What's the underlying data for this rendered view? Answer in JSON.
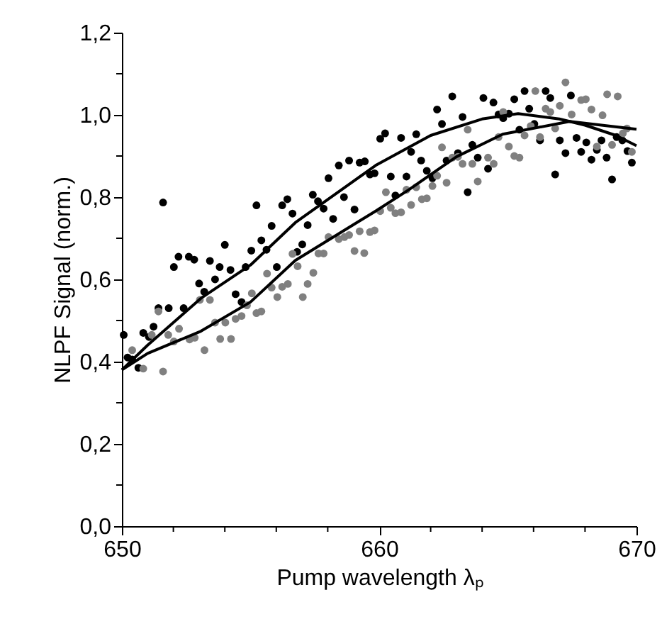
{
  "chart_data": {
    "type": "scatter",
    "xlabel": "Pump wavelength λₚ",
    "ylabel": "NLPF Signal (norm.)",
    "xlim": [
      650,
      670
    ],
    "ylim": [
      0,
      1.2
    ],
    "xticks": [
      650,
      {
        "value": 652,
        "label": null
      },
      {
        "value": 654,
        "label": null
      },
      {
        "value": 656,
        "label": null
      },
      {
        "value": 658,
        "label": null
      },
      660,
      {
        "value": 662,
        "label": null
      },
      {
        "value": 664,
        "label": null
      },
      {
        "value": 666,
        "label": null
      },
      {
        "value": 668,
        "label": null
      },
      670
    ],
    "yticks": [
      {
        "value": 0,
        "label": "0,0"
      },
      {
        "value": 0.1,
        "label": null
      },
      {
        "value": 0.2,
        "label": "0,2"
      },
      {
        "value": 0.3,
        "label": null
      },
      {
        "value": 0.4,
        "label": "0,4"
      },
      {
        "value": 0.5,
        "label": null
      },
      {
        "value": 0.6,
        "label": "0,6"
      },
      {
        "value": 0.7,
        "label": null
      },
      {
        "value": 0.8,
        "label": "0,8"
      },
      {
        "value": 0.9,
        "label": null
      },
      {
        "value": 1.0,
        "label": "1,0"
      },
      {
        "value": 1.1,
        "label": null
      },
      {
        "value": 1.2,
        "label": "1,2"
      }
    ],
    "grid": false,
    "series": [
      {
        "color": "#000000",
        "marker": "circle",
        "x": [
          650.07,
          650.22,
          650.4,
          650.64,
          650.83,
          651.05,
          651.23,
          651.42,
          651.6,
          651.82,
          652.02,
          652.2,
          652.4,
          652.6,
          652.81,
          653.0,
          653.2,
          653.42,
          653.62,
          653.8,
          654.0,
          654.22,
          654.42,
          654.65,
          654.81,
          655.03,
          655.23,
          655.42,
          655.62,
          655.82,
          656.02,
          656.23,
          656.43,
          656.63,
          656.81,
          657.01,
          657.22,
          657.42,
          657.62,
          657.84,
          658.03,
          658.21,
          658.43,
          658.63,
          658.83,
          659.04,
          659.24,
          659.44,
          659.64,
          659.82,
          660.04,
          660.23,
          660.45,
          660.63,
          660.85,
          661.06,
          661.24,
          661.44,
          661.63,
          661.85,
          662.07,
          662.25,
          662.44,
          662.62,
          662.84,
          663.06,
          663.24,
          663.44,
          663.62,
          663.83,
          664.05,
          664.23,
          664.44,
          664.64,
          664.82,
          665.04,
          665.25,
          665.45,
          665.65,
          665.83,
          666.03,
          666.25,
          666.47,
          666.65,
          666.84,
          667.02,
          667.24,
          667.45,
          667.67,
          667.85,
          668.05,
          668.25,
          668.46,
          668.64,
          668.84,
          669.05,
          669.23,
          669.45,
          669.65,
          669.82
        ],
        "values": [
          0.465,
          0.41,
          0.405,
          0.385,
          0.47,
          0.46,
          0.485,
          0.53,
          0.787,
          0.53,
          0.63,
          0.655,
          0.53,
          0.655,
          0.648,
          0.59,
          0.57,
          0.645,
          0.6,
          0.63,
          0.684,
          0.623,
          0.564,
          0.545,
          0.63,
          0.67,
          0.78,
          0.695,
          0.672,
          0.73,
          0.63,
          0.78,
          0.795,
          0.76,
          0.667,
          0.685,
          0.732,
          0.806,
          0.79,
          0.772,
          0.846,
          0.747,
          0.877,
          0.8,
          0.889,
          0.77,
          0.884,
          0.887,
          0.855,
          0.858,
          0.942,
          0.955,
          0.85,
          0.804,
          0.944,
          0.85,
          0.91,
          0.953,
          0.889,
          0.864,
          0.846,
          1.013,
          0.978,
          0.889,
          1.045,
          0.907,
          0.995,
          0.812,
          0.927,
          0.896,
          1.041,
          0.869,
          1.03,
          1.001,
          0.992,
          1.003,
          1.038,
          0.964,
          1.058,
          1.015,
          0.978,
          0.938,
          1.058,
          1.041,
          0.855,
          0.938,
          0.907,
          1.047,
          0.944,
          0.91,
          0.933,
          0.891,
          0.915,
          0.938,
          0.896,
          0.843,
          0.946,
          0.938,
          0.912,
          0.884
        ]
      },
      {
        "color": "#808080",
        "marker": "circle",
        "x": [
          650.4,
          650.83,
          651.16,
          651.42,
          651.6,
          651.8,
          652.02,
          652.22,
          652.63,
          652.83,
          653.03,
          653.21,
          653.42,
          653.62,
          653.82,
          654.02,
          654.24,
          654.42,
          654.65,
          654.86,
          655.05,
          655.23,
          655.42,
          655.64,
          655.82,
          656.04,
          656.23,
          656.45,
          656.63,
          656.83,
          657.03,
          657.22,
          657.44,
          657.64,
          657.84,
          658.03,
          658.43,
          658.65,
          658.83,
          659.04,
          659.24,
          659.42,
          659.64,
          659.82,
          660.04,
          660.26,
          660.45,
          660.63,
          660.85,
          661.06,
          661.24,
          661.44,
          661.66,
          661.85,
          662.07,
          662.25,
          662.44,
          662.62,
          662.84,
          663.06,
          663.24,
          663.44,
          663.62,
          663.83,
          664.23,
          664.45,
          664.64,
          664.82,
          665.04,
          665.25,
          665.45,
          665.65,
          665.89,
          666.07,
          666.25,
          666.47,
          666.65,
          666.84,
          667.02,
          667.24,
          667.48,
          667.85,
          668.03,
          668.25,
          668.46,
          668.68,
          668.86,
          669.05,
          669.27,
          669.47,
          669.63,
          669.82
        ],
        "values": [
          0.428,
          0.383,
          0.465,
          0.522,
          0.376,
          0.465,
          0.449,
          0.48,
          0.454,
          0.458,
          0.55,
          0.428,
          0.55,
          0.495,
          0.455,
          0.495,
          0.455,
          0.504,
          0.511,
          0.537,
          0.566,
          0.518,
          0.522,
          0.614,
          0.58,
          0.557,
          0.582,
          0.589,
          0.662,
          0.632,
          0.557,
          0.589,
          0.616,
          0.663,
          0.663,
          0.703,
          0.698,
          0.703,
          0.708,
          0.669,
          0.717,
          0.664,
          0.715,
          0.719,
          0.766,
          0.812,
          0.774,
          0.761,
          0.763,
          0.818,
          0.781,
          0.824,
          0.795,
          0.797,
          0.827,
          0.852,
          0.921,
          0.835,
          0.896,
          0.898,
          0.881,
          0.964,
          0.881,
          0.838,
          0.896,
          0.881,
          0.946,
          1.007,
          0.923,
          0.9,
          0.896,
          0.95,
          0.973,
          1.058,
          0.946,
          1.015,
          1.007,
          0.967,
          1.022,
          1.079,
          1.001,
          1.036,
          1.038,
          1.013,
          0.923,
          0.999,
          1.05,
          0.927,
          1.045,
          0.955,
          0.967,
          0.91
        ]
      },
      {
        "type": "line",
        "color": "#000000",
        "marker": "none",
        "line_style": "solid",
        "x": [
          650,
          651,
          653.07,
          655,
          656.74,
          659.86,
          662,
          664,
          665.4,
          667,
          668,
          669.2,
          670
        ],
        "values": [
          0.38,
          0.44,
          0.554,
          0.635,
          0.738,
          0.877,
          0.95,
          0.99,
          1.003,
          0.99,
          0.975,
          0.95,
          0.925
        ]
      },
      {
        "type": "line",
        "color": "#000000",
        "marker": "none",
        "line_style": "solid",
        "x": [
          650,
          651,
          653.07,
          655,
          656.74,
          659.86,
          661.15,
          663,
          664.8,
          667.4,
          670
        ],
        "values": [
          0.38,
          0.42,
          0.474,
          0.545,
          0.646,
          0.766,
          0.818,
          0.898,
          0.953,
          0.984,
          0.965
        ]
      }
    ]
  }
}
